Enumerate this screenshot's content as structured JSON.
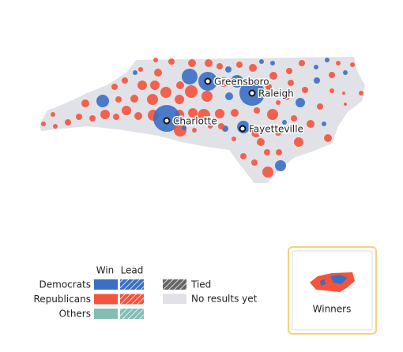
{
  "map": {
    "cities": [
      "Greensboro",
      "Raleigh",
      "Charlotte",
      "Fayetteville"
    ]
  },
  "legend": {
    "headers": [
      "Win",
      "Lead"
    ],
    "parties": [
      {
        "name": "Democrats",
        "color": "#3a6fc4"
      },
      {
        "name": "Republicans",
        "color": "#f4533d"
      },
      {
        "name": "Others",
        "color": "#83bdb5"
      }
    ],
    "tied": "Tied",
    "no_results": "No results yet"
  },
  "button": {
    "label": "Winners"
  }
}
